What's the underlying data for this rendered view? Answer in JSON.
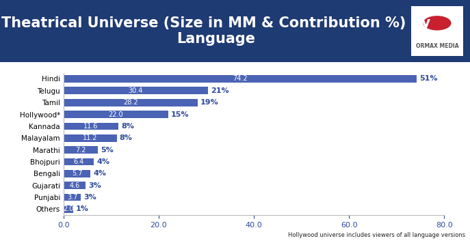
{
  "chart_data": {
    "type": "bar",
    "orientation": "horizontal",
    "title": "Theatrical Universe (Size in MM & Contribution %) by Language",
    "logo": "ORMAX MEDIA",
    "footnote": "Hollywood universe includes viewers of all language versions",
    "categories": [
      "Hindi",
      "Telugu",
      "Tamil",
      "Hollywood*",
      "Kannada",
      "Malayalam",
      "Marathi",
      "Bhojpuri",
      "Bengali",
      "Gujarati",
      "Punjabi",
      "Others"
    ],
    "values": [
      74.2,
      30.4,
      28.2,
      22.0,
      11.6,
      11.2,
      7.2,
      6.4,
      5.7,
      4.6,
      3.7,
      2.0
    ],
    "value_labels": [
      "74.2",
      "30.4",
      "28.2",
      "22.0",
      "11.6",
      "11.2",
      "7.2",
      "6.4",
      "5.7",
      "4.6",
      "3.7",
      "2.0"
    ],
    "contributions": [
      51,
      21,
      19,
      15,
      8,
      8,
      5,
      4,
      4,
      3,
      3,
      1
    ],
    "contribution_labels": [
      "51%",
      "21%",
      "19%",
      "15%",
      "8%",
      "8%",
      "5%",
      "4%",
      "4%",
      "3%",
      "3%",
      "1%"
    ],
    "color": "#4a63b4",
    "data_labels": true,
    "grid": false,
    "xlim": [
      0,
      80
    ],
    "xticks": [
      {
        "value": 0,
        "label": "0.0"
      },
      {
        "value": 20,
        "label": "20.0"
      },
      {
        "value": 40,
        "label": "40.0"
      },
      {
        "value": 60,
        "label": "60.0"
      },
      {
        "value": 80,
        "label": "80.0"
      }
    ]
  }
}
